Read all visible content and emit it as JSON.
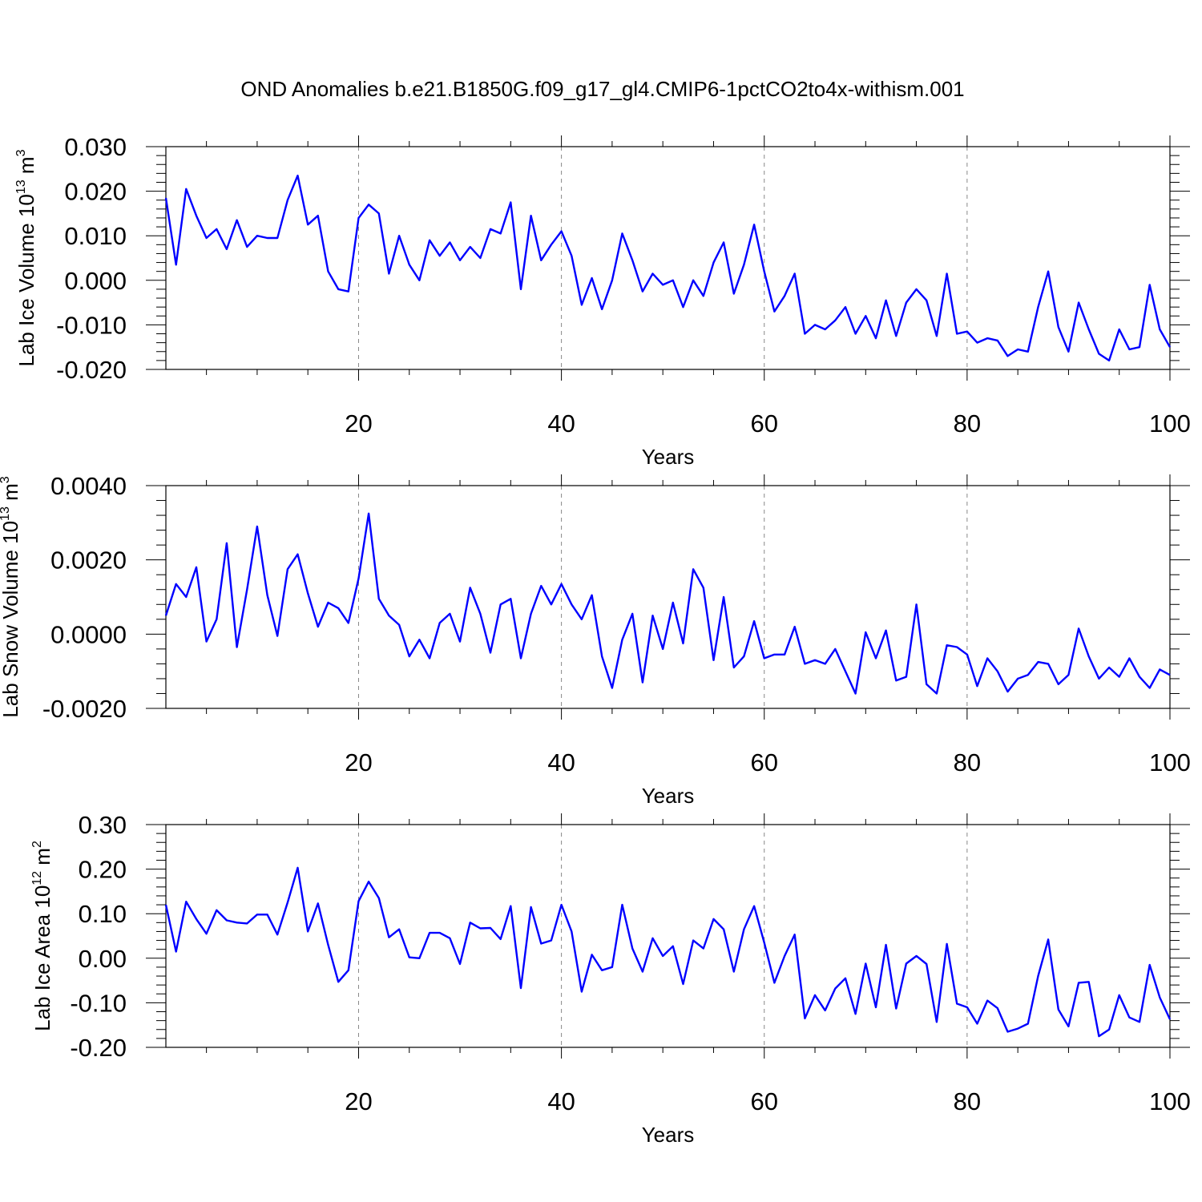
{
  "title": "OND Anomalies b.e21.B1850G.f09_g17_gl4.CMIP6-1pctCO2to4x-withism.001",
  "colors": {
    "series": "#0000ff",
    "axes": "#000000",
    "grid": "#888888"
  },
  "chart_data": [
    {
      "type": "line",
      "xlabel": "Years",
      "ylabel": {
        "prefix": "Lab Ice Volume 10",
        "exponent": "13",
        "unit": " m",
        "unit_exponent": "3"
      },
      "xlim": [
        1,
        100
      ],
      "ylim": [
        -0.02,
        0.03
      ],
      "xticks": [
        "20",
        "40",
        "60",
        "80",
        "100"
      ],
      "yticks": [
        "0.030",
        "0.020",
        "0.010",
        "0.000",
        "-0.010",
        "-0.020"
      ],
      "grid": "vertical dashed at x = 20, 40, 60, 80",
      "x": [
        1,
        2,
        3,
        4,
        5,
        6,
        7,
        8,
        9,
        10,
        11,
        12,
        13,
        14,
        15,
        16,
        17,
        18,
        19,
        20,
        21,
        22,
        23,
        24,
        25,
        26,
        27,
        28,
        29,
        30,
        31,
        32,
        33,
        34,
        35,
        36,
        37,
        38,
        39,
        40,
        41,
        42,
        43,
        44,
        45,
        46,
        47,
        48,
        49,
        50,
        51,
        52,
        53,
        54,
        55,
        56,
        57,
        58,
        59,
        60,
        61,
        62,
        63,
        64,
        65,
        66,
        67,
        68,
        69,
        70,
        71,
        72,
        73,
        74,
        75,
        76,
        77,
        78,
        79,
        80,
        81,
        82,
        83,
        84,
        85,
        86,
        87,
        88,
        89,
        90,
        91,
        92,
        93,
        94,
        95,
        96,
        97,
        98,
        99,
        100
      ],
      "values": [
        0.0185,
        0.0035,
        0.0205,
        0.0145,
        0.0095,
        0.0115,
        0.007,
        0.0135,
        0.0075,
        0.01,
        0.0095,
        0.0095,
        0.018,
        0.0235,
        0.0125,
        0.0145,
        0.002,
        -0.002,
        -0.0025,
        0.014,
        0.017,
        0.015,
        0.0015,
        0.01,
        0.0035,
        0.0,
        0.009,
        0.0055,
        0.0085,
        0.0045,
        0.0075,
        0.005,
        0.0115,
        0.0105,
        0.0175,
        -0.002,
        0.0145,
        0.0045,
        0.008,
        0.011,
        0.0055,
        -0.0055,
        0.0005,
        -0.0065,
        0.0,
        0.0105,
        0.0045,
        -0.0025,
        0.0015,
        -0.001,
        0.0,
        -0.006,
        0.0,
        -0.0035,
        0.004,
        0.0085,
        -0.003,
        0.0035,
        0.0125,
        0.002,
        -0.007,
        -0.0035,
        0.0015,
        -0.012,
        -0.01,
        -0.011,
        -0.009,
        -0.006,
        -0.012,
        -0.008,
        -0.013,
        -0.0045,
        -0.0125,
        -0.005,
        -0.002,
        -0.0045,
        -0.0125,
        0.0015,
        -0.012,
        -0.0115,
        -0.014,
        -0.013,
        -0.0135,
        -0.017,
        -0.0155,
        -0.016,
        -0.006,
        0.002,
        -0.0105,
        -0.016,
        -0.005,
        -0.011,
        -0.0165,
        -0.018,
        -0.011,
        -0.0155,
        -0.015,
        -0.001,
        -0.011,
        -0.015
      ]
    },
    {
      "type": "line",
      "xlabel": "Years",
      "ylabel": {
        "prefix": "Lab Snow Volume 10",
        "exponent": "13",
        "unit": " m",
        "unit_exponent": "3"
      },
      "xlim": [
        1,
        100
      ],
      "ylim": [
        -0.002,
        0.004
      ],
      "xticks": [
        "20",
        "40",
        "60",
        "80",
        "100"
      ],
      "yticks": [
        "0.0040",
        "0.0020",
        "0.0000",
        "-0.0020"
      ],
      "grid": "vertical dashed at x = 20, 40, 60, 80",
      "x": [
        1,
        2,
        3,
        4,
        5,
        6,
        7,
        8,
        9,
        10,
        11,
        12,
        13,
        14,
        15,
        16,
        17,
        18,
        19,
        20,
        21,
        22,
        23,
        24,
        25,
        26,
        27,
        28,
        29,
        30,
        31,
        32,
        33,
        34,
        35,
        36,
        37,
        38,
        39,
        40,
        41,
        42,
        43,
        44,
        45,
        46,
        47,
        48,
        49,
        50,
        51,
        52,
        53,
        54,
        55,
        56,
        57,
        58,
        59,
        60,
        61,
        62,
        63,
        64,
        65,
        66,
        67,
        68,
        69,
        70,
        71,
        72,
        73,
        74,
        75,
        76,
        77,
        78,
        79,
        80,
        81,
        82,
        83,
        84,
        85,
        86,
        87,
        88,
        89,
        90,
        91,
        92,
        93,
        94,
        95,
        96,
        97,
        98,
        99,
        100
      ],
      "values": [
        0.0005,
        0.00135,
        0.001,
        0.0018,
        -0.0002,
        0.0004,
        0.00245,
        -0.00035,
        0.0012,
        0.0029,
        0.00105,
        -5e-05,
        0.00175,
        0.00215,
        0.0011,
        0.0002,
        0.00085,
        0.0007,
        0.0003,
        0.0015,
        0.00325,
        0.00095,
        0.0005,
        0.00025,
        -0.0006,
        -0.00015,
        -0.00065,
        0.0003,
        0.00055,
        -0.0002,
        0.00125,
        0.00055,
        -0.0005,
        0.0008,
        0.00095,
        -0.00065,
        0.00055,
        0.0013,
        0.0008,
        0.00135,
        0.0008,
        0.0004,
        0.00105,
        -0.0006,
        -0.00145,
        -0.00015,
        0.00055,
        -0.0013,
        0.0005,
        -0.0004,
        0.00085,
        -0.00025,
        0.00175,
        0.00125,
        -0.0007,
        0.001,
        -0.0009,
        -0.0006,
        0.00035,
        -0.00065,
        -0.00055,
        -0.00055,
        0.0002,
        -0.0008,
        -0.0007,
        -0.0008,
        -0.0004,
        -0.001,
        -0.0016,
        5e-05,
        -0.00065,
        0.0001,
        -0.00125,
        -0.00115,
        0.0008,
        -0.00135,
        -0.0016,
        -0.0003,
        -0.00035,
        -0.00055,
        -0.0014,
        -0.00065,
        -0.001,
        -0.00155,
        -0.0012,
        -0.0011,
        -0.00075,
        -0.0008,
        -0.00135,
        -0.0011,
        0.00015,
        -0.0006,
        -0.0012,
        -0.0009,
        -0.00115,
        -0.00065,
        -0.00115,
        -0.00145,
        -0.00095,
        -0.0011
      ]
    },
    {
      "type": "line",
      "xlabel": "Years",
      "ylabel": {
        "prefix": "Lab Ice Area 10",
        "exponent": "12",
        "unit": " m",
        "unit_exponent": "2"
      },
      "xlim": [
        1,
        100
      ],
      "ylim": [
        -0.2,
        0.3
      ],
      "xticks": [
        "20",
        "40",
        "60",
        "80",
        "100"
      ],
      "yticks": [
        "0.30",
        "0.20",
        "0.10",
        "0.00",
        "-0.10",
        "-0.20"
      ],
      "grid": "vertical dashed at x = 20, 40, 60, 80",
      "x": [
        1,
        2,
        3,
        4,
        5,
        6,
        7,
        8,
        9,
        10,
        11,
        12,
        13,
        14,
        15,
        16,
        17,
        18,
        19,
        20,
        21,
        22,
        23,
        24,
        25,
        26,
        27,
        28,
        29,
        30,
        31,
        32,
        33,
        34,
        35,
        36,
        37,
        38,
        39,
        40,
        41,
        42,
        43,
        44,
        45,
        46,
        47,
        48,
        49,
        50,
        51,
        52,
        53,
        54,
        55,
        56,
        57,
        58,
        59,
        60,
        61,
        62,
        63,
        64,
        65,
        66,
        67,
        68,
        69,
        70,
        71,
        72,
        73,
        74,
        75,
        76,
        77,
        78,
        79,
        80,
        81,
        82,
        83,
        84,
        85,
        86,
        87,
        88,
        89,
        90,
        91,
        92,
        93,
        94,
        95,
        96,
        97,
        98,
        99,
        100
      ],
      "values": [
        0.12,
        0.015,
        0.127,
        0.088,
        0.055,
        0.108,
        0.085,
        0.08,
        0.078,
        0.098,
        0.098,
        0.053,
        0.125,
        0.203,
        0.06,
        0.123,
        0.03,
        -0.053,
        -0.027,
        0.128,
        0.172,
        0.135,
        0.047,
        0.065,
        0.002,
        0.0,
        0.057,
        0.057,
        0.045,
        -0.013,
        0.08,
        0.067,
        0.068,
        0.043,
        0.117,
        -0.067,
        0.115,
        0.033,
        0.04,
        0.12,
        0.06,
        -0.075,
        0.008,
        -0.027,
        -0.02,
        0.12,
        0.022,
        -0.03,
        0.045,
        0.005,
        0.027,
        -0.058,
        0.04,
        0.022,
        0.088,
        0.065,
        -0.03,
        0.065,
        0.117,
        0.035,
        -0.055,
        0.005,
        0.053,
        -0.135,
        -0.083,
        -0.117,
        -0.068,
        -0.045,
        -0.125,
        -0.012,
        -0.11,
        0.03,
        -0.113,
        -0.012,
        0.005,
        -0.013,
        -0.143,
        0.032,
        -0.102,
        -0.11,
        -0.147,
        -0.095,
        -0.112,
        -0.165,
        -0.158,
        -0.147,
        -0.04,
        0.042,
        -0.115,
        -0.153,
        -0.055,
        -0.053,
        -0.175,
        -0.16,
        -0.083,
        -0.133,
        -0.143,
        -0.015,
        -0.088,
        -0.137
      ]
    }
  ]
}
